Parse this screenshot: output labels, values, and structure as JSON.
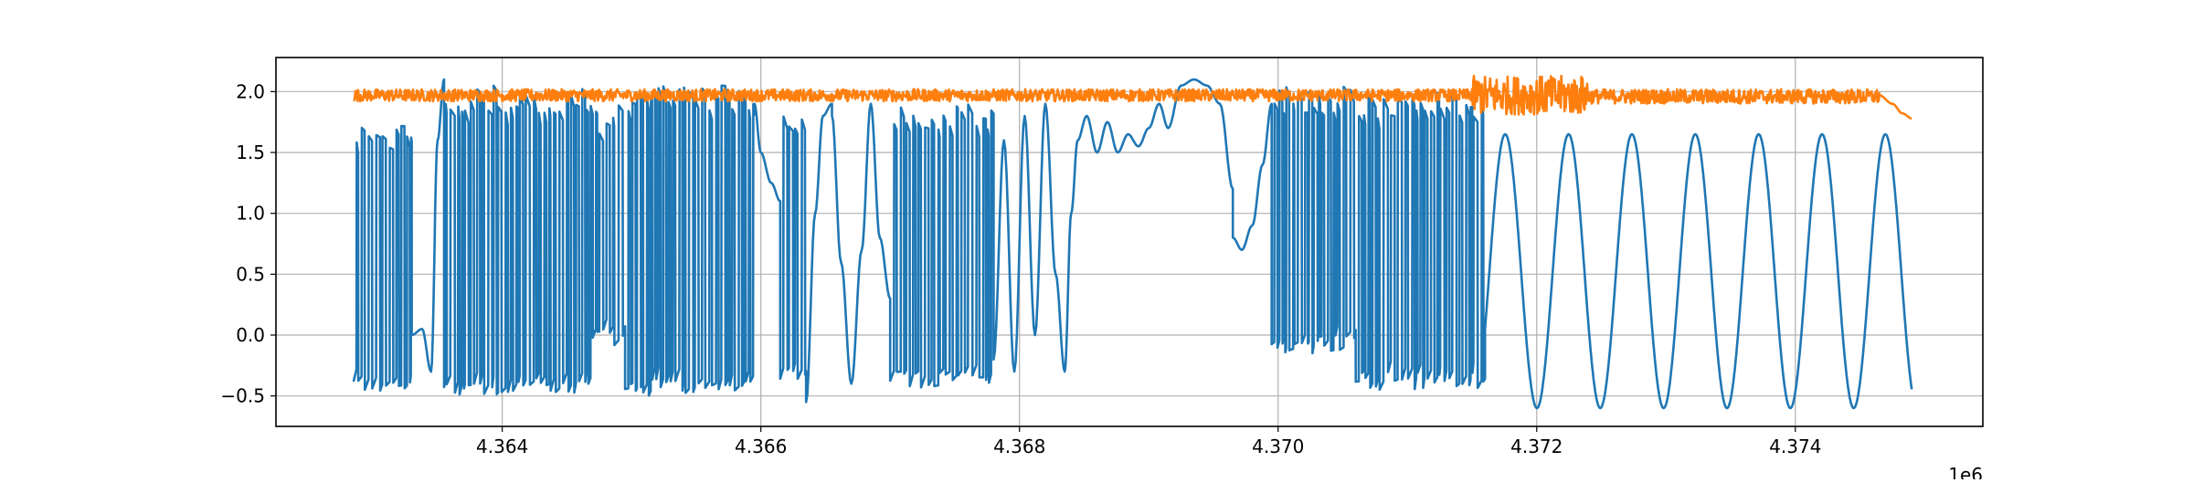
{
  "chart_data": {
    "type": "line",
    "title": "",
    "xlabel": "",
    "ylabel": "",
    "x_offset_label": "1e6",
    "xlim": [
      4362250,
      4375450
    ],
    "ylim": [
      -0.75,
      2.28
    ],
    "grid": true,
    "x_ticks": [
      4364000,
      4366000,
      4368000,
      4370000,
      4372000,
      4374000
    ],
    "x_tick_labels": [
      "4.364",
      "4.366",
      "4.368",
      "4.370",
      "4.372",
      "4.374"
    ],
    "y_ticks": [
      -0.5,
      0.0,
      0.5,
      1.0,
      1.5,
      2.0
    ],
    "y_tick_labels": [
      "−0.5",
      "0.0",
      "0.5",
      "1.0",
      "1.5",
      "2.0"
    ],
    "series": [
      {
        "color": "#1f77b4",
        "segments": [
          {
            "x_start": 4362850,
            "x_end": 4363300,
            "kind": "switching",
            "low": -0.48,
            "high": 1.75
          },
          {
            "x_start": 4363300,
            "x_end": 4363550,
            "kind": "smooth",
            "points": [
              [
                4363300,
                0.0
              ],
              [
                4363380,
                0.05
              ],
              [
                4363450,
                -0.3
              ],
              [
                4363500,
                1.6
              ],
              [
                4363550,
                2.1
              ]
            ]
          },
          {
            "x_start": 4363550,
            "x_end": 4364700,
            "kind": "switching",
            "low": -0.5,
            "high": 2.05
          },
          {
            "x_start": 4364700,
            "x_end": 4364950,
            "kind": "switching",
            "low": -0.1,
            "high": 1.9
          },
          {
            "x_start": 4364950,
            "x_end": 4365950,
            "kind": "switching",
            "low": -0.5,
            "high": 2.05
          },
          {
            "x_start": 4365950,
            "x_end": 4366150,
            "kind": "smooth",
            "points": [
              [
                4365950,
                1.9
              ],
              [
                4366000,
                1.5
              ],
              [
                4366080,
                1.25
              ],
              [
                4366150,
                1.1
              ]
            ]
          },
          {
            "x_start": 4366150,
            "x_end": 4366350,
            "kind": "switching",
            "low": -0.4,
            "high": 1.8
          },
          {
            "x_start": 4366350,
            "x_end": 4366550,
            "kind": "smooth",
            "points": [
              [
                4366350,
                -0.55
              ],
              [
                4366420,
                1.0
              ],
              [
                4366480,
                1.8
              ],
              [
                4366550,
                1.9
              ]
            ]
          },
          {
            "x_start": 4366550,
            "x_end": 4367000,
            "kind": "smooth",
            "points": [
              [
                4366550,
                1.8
              ],
              [
                4366620,
                0.6
              ],
              [
                4366700,
                -0.4
              ],
              [
                4366780,
                0.7
              ],
              [
                4366850,
                1.9
              ],
              [
                4366920,
                0.8
              ],
              [
                4367000,
                0.3
              ]
            ]
          },
          {
            "x_start": 4367000,
            "x_end": 4367800,
            "kind": "switching",
            "low": -0.45,
            "high": 1.9
          },
          {
            "x_start": 4367800,
            "x_end": 4368450,
            "kind": "smooth",
            "points": [
              [
                4367800,
                -0.2
              ],
              [
                4367880,
                1.6
              ],
              [
                4367960,
                -0.3
              ],
              [
                4368040,
                1.8
              ],
              [
                4368120,
                0.0
              ],
              [
                4368200,
                1.9
              ],
              [
                4368280,
                0.5
              ],
              [
                4368350,
                -0.3
              ],
              [
                4368400,
                1.0
              ],
              [
                4368450,
                1.6
              ]
            ]
          },
          {
            "x_start": 4368450,
            "x_end": 4369150,
            "kind": "smooth",
            "points": [
              [
                4368450,
                1.6
              ],
              [
                4368520,
                1.8
              ],
              [
                4368600,
                1.5
              ],
              [
                4368680,
                1.75
              ],
              [
                4368760,
                1.5
              ],
              [
                4368840,
                1.65
              ],
              [
                4368920,
                1.55
              ],
              [
                4369000,
                1.7
              ],
              [
                4369080,
                1.9
              ],
              [
                4369150,
                1.7
              ]
            ]
          },
          {
            "x_start": 4369150,
            "x_end": 4369650,
            "kind": "smooth",
            "points": [
              [
                4369150,
                1.7
              ],
              [
                4369250,
                2.05
              ],
              [
                4369350,
                2.1
              ],
              [
                4369450,
                2.05
              ],
              [
                4369550,
                1.9
              ],
              [
                4369650,
                1.2
              ]
            ]
          },
          {
            "x_start": 4369650,
            "x_end": 4369950,
            "kind": "smooth",
            "points": [
              [
                4369650,
                0.8
              ],
              [
                4369720,
                0.7
              ],
              [
                4369800,
                0.9
              ],
              [
                4369880,
                1.4
              ],
              [
                4369950,
                1.9
              ]
            ]
          },
          {
            "x_start": 4369950,
            "x_end": 4370600,
            "kind": "switching",
            "low": -0.15,
            "high": 2.05
          },
          {
            "x_start": 4370600,
            "x_end": 4371600,
            "kind": "switching",
            "low": -0.45,
            "high": 2.0
          },
          {
            "x_start": 4371600,
            "x_end": 4374900,
            "kind": "sine",
            "period": 490,
            "low": -0.6,
            "high": 1.65,
            "start_value": 0.05
          }
        ]
      },
      {
        "color": "#ff7f0e",
        "segments": [
          {
            "x_start": 4362850,
            "x_end": 4371500,
            "kind": "noise",
            "mean": 1.97,
            "amplitude": 0.05
          },
          {
            "x_start": 4371500,
            "x_end": 4372400,
            "kind": "noise",
            "mean": 1.97,
            "amplitude": 0.16
          },
          {
            "x_start": 4372400,
            "x_end": 4374650,
            "kind": "noise",
            "mean": 1.96,
            "amplitude": 0.06
          },
          {
            "x_start": 4374650,
            "x_end": 4374900,
            "kind": "smooth",
            "points": [
              [
                4374650,
                1.97
              ],
              [
                4374750,
                1.9
              ],
              [
                4374830,
                1.82
              ],
              [
                4374900,
                1.78
              ]
            ]
          }
        ]
      }
    ]
  }
}
